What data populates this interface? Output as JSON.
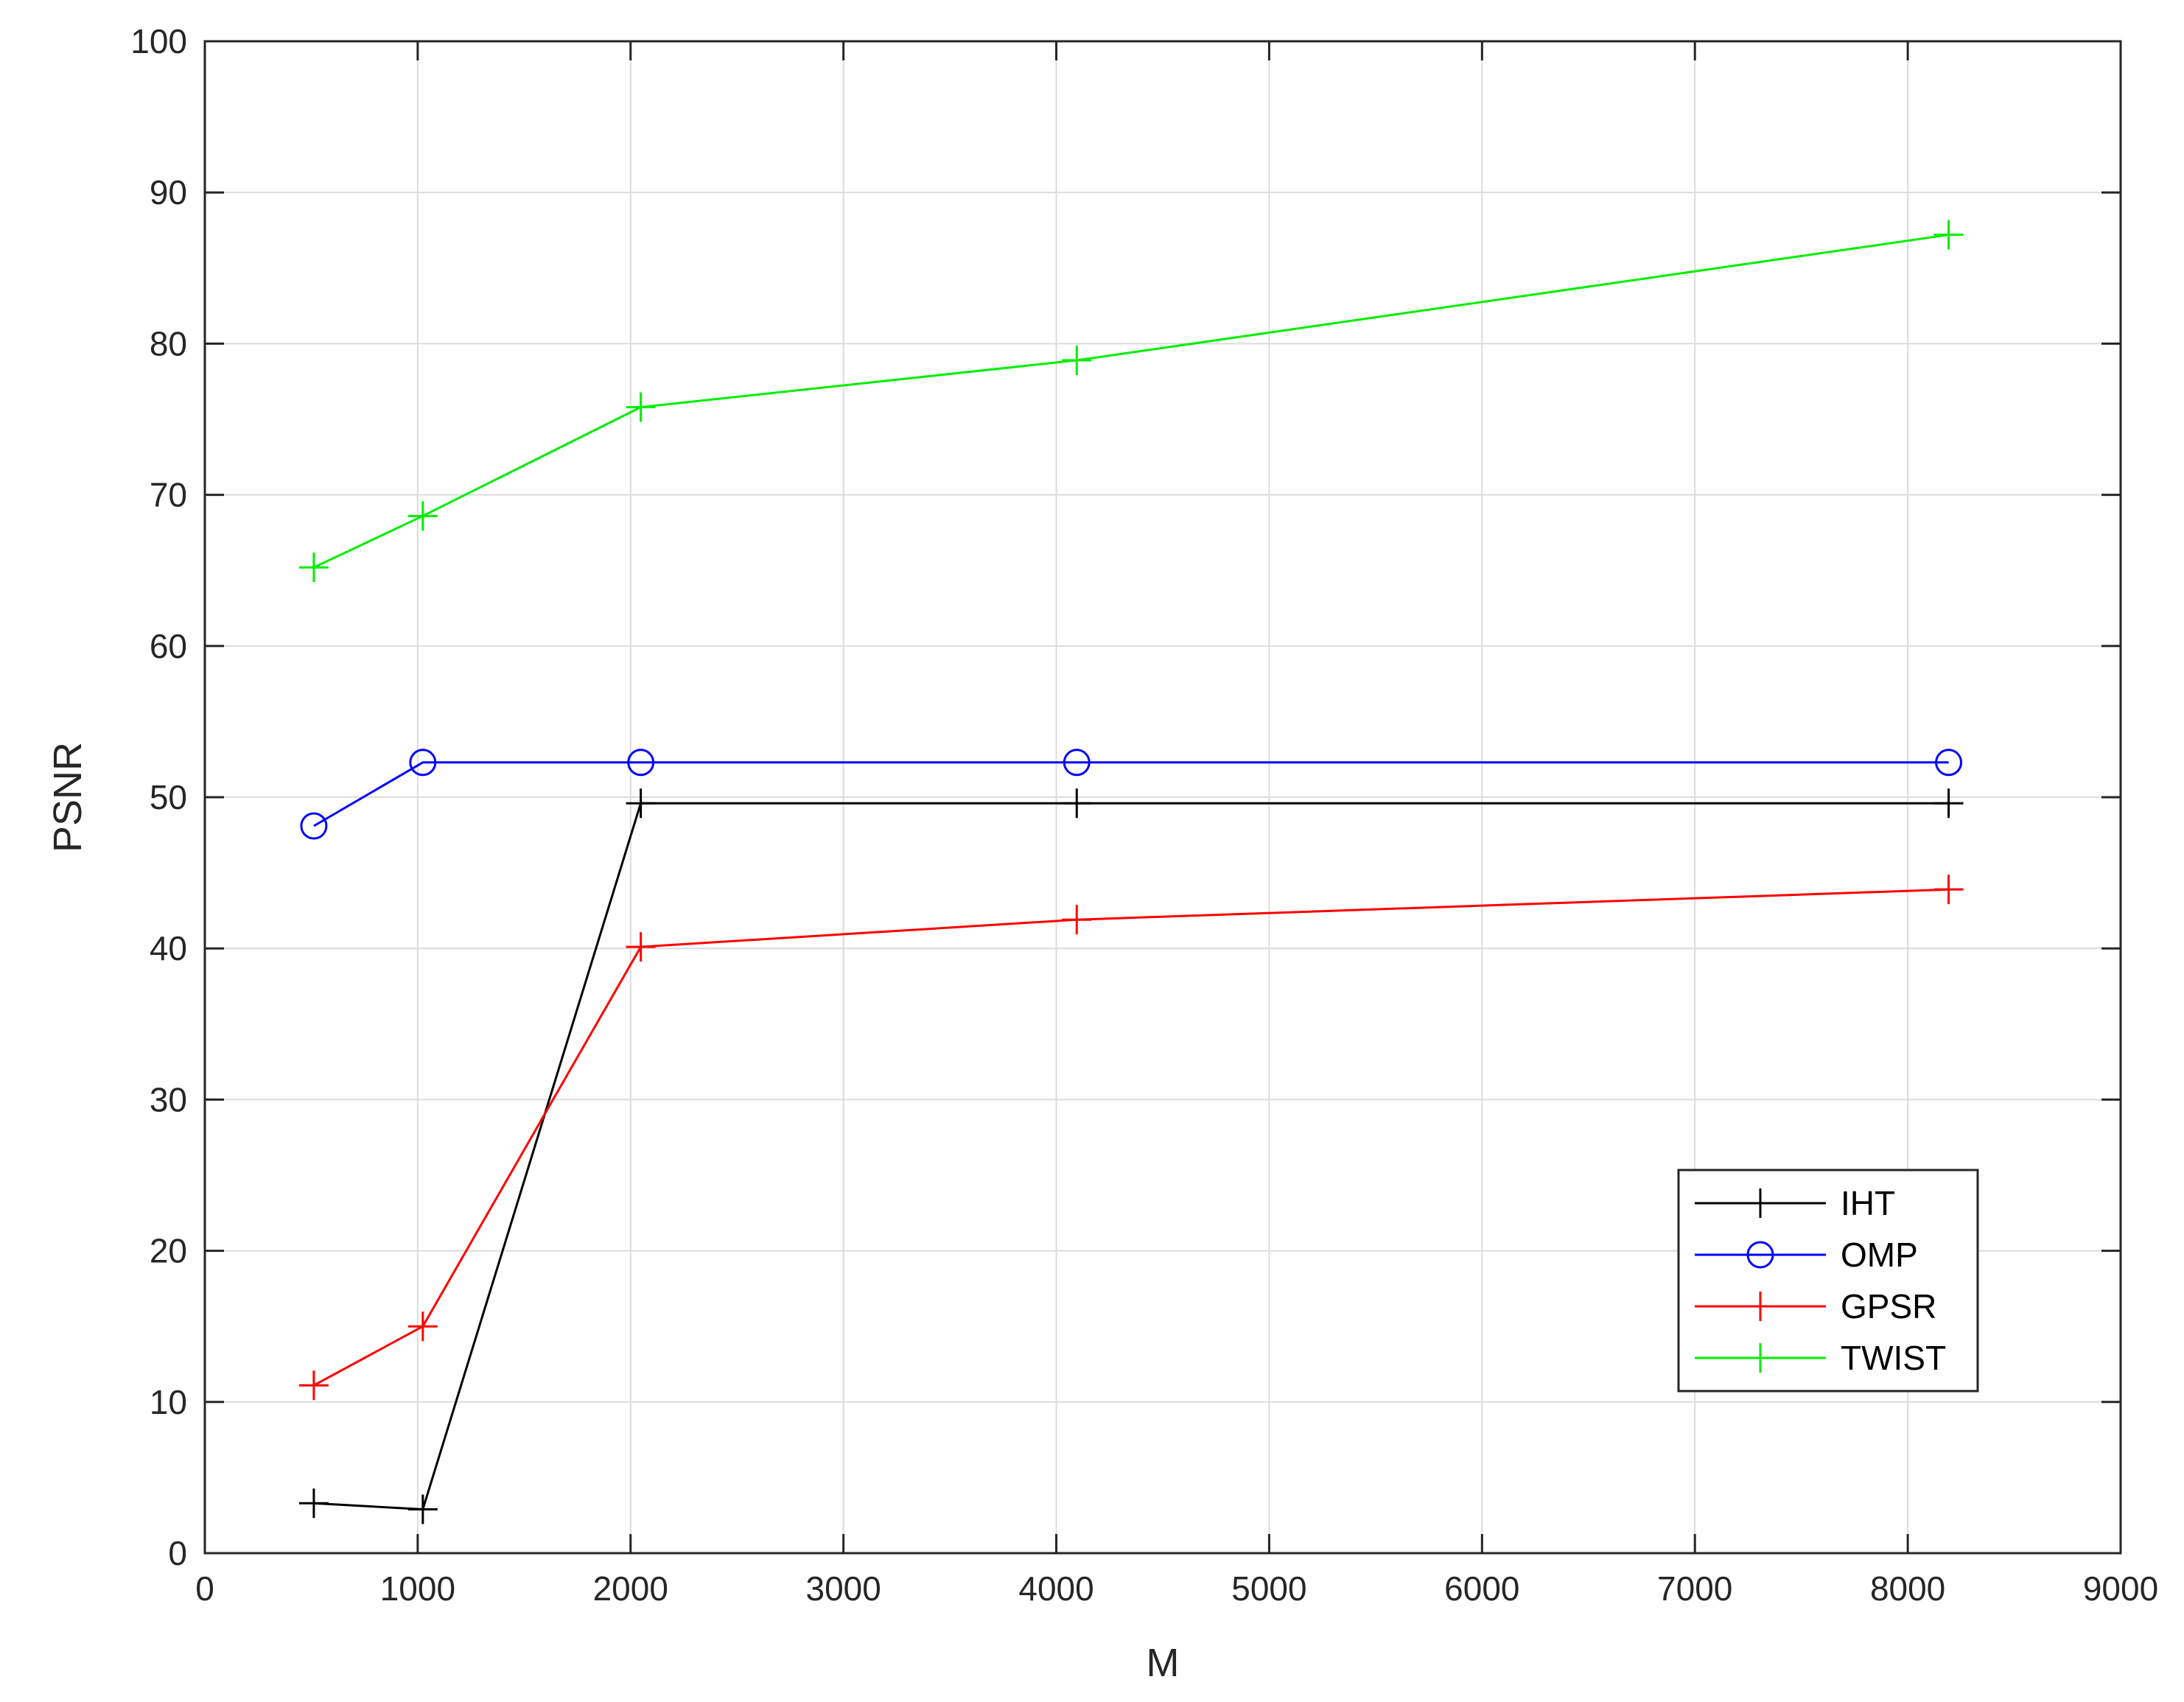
{
  "chart_data": {
    "type": "line",
    "title": "",
    "xlabel": "M",
    "ylabel": "PSNR",
    "xlim": [
      0,
      9000
    ],
    "ylim": [
      0,
      100
    ],
    "xticks": [
      0,
      1000,
      2000,
      3000,
      4000,
      5000,
      6000,
      7000,
      8000,
      9000
    ],
    "yticks": [
      0,
      10,
      20,
      30,
      40,
      50,
      60,
      70,
      80,
      90,
      100
    ],
    "grid": true,
    "legend_position": "bottom-right",
    "x": [
      512,
      1024,
      2048,
      4096,
      8192
    ],
    "series": [
      {
        "name": "IHT",
        "color": "#000000",
        "marker": "plus",
        "values": [
          3.3,
          2.9,
          49.6,
          49.6,
          49.6
        ]
      },
      {
        "name": "OMP",
        "color": "#0000ff",
        "marker": "circle",
        "values": [
          48.1,
          52.3,
          52.3,
          52.3,
          52.3
        ]
      },
      {
        "name": "GPSR",
        "color": "#ff0000",
        "marker": "plus",
        "values": [
          11.1,
          15.0,
          40.1,
          41.9,
          43.9
        ]
      },
      {
        "name": "TWIST",
        "color": "#00ee00",
        "marker": "plus",
        "values": [
          65.2,
          68.6,
          75.8,
          78.9,
          87.2
        ]
      }
    ]
  }
}
